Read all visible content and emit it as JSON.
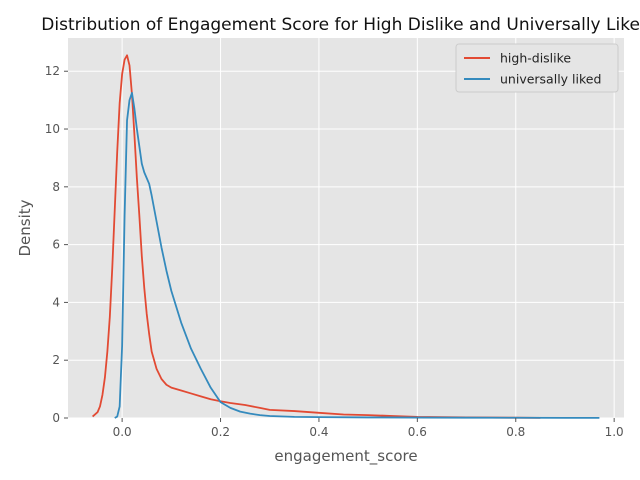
{
  "chart_data": {
    "type": "line",
    "title": "Distribution of Engagement Score for High Dislike and Universally Liked",
    "xlabel": "engagement_score",
    "ylabel": "Density",
    "xlim": [
      -0.11,
      1.02
    ],
    "ylim": [
      0,
      13.15
    ],
    "xticks": [
      0.0,
      0.2,
      0.4,
      0.6,
      0.8,
      1.0
    ],
    "xtick_labels": [
      "0.0",
      "0.2",
      "0.4",
      "0.6",
      "0.8",
      "1.0"
    ],
    "yticks": [
      0,
      2,
      4,
      6,
      8,
      10,
      12
    ],
    "ytick_labels": [
      "0",
      "2",
      "4",
      "6",
      "8",
      "10",
      "12"
    ],
    "grid": true,
    "legend_position": "top-right",
    "series": [
      {
        "name": "high-dislike",
        "color": "#E24A33",
        "x": [
          -0.06,
          -0.05,
          -0.045,
          -0.04,
          -0.035,
          -0.03,
          -0.025,
          -0.02,
          -0.015,
          -0.01,
          -0.005,
          0.0,
          0.005,
          0.01,
          0.015,
          0.02,
          0.025,
          0.03,
          0.035,
          0.04,
          0.045,
          0.05,
          0.055,
          0.06,
          0.07,
          0.08,
          0.09,
          0.1,
          0.12,
          0.14,
          0.16,
          0.18,
          0.2,
          0.22,
          0.25,
          0.28,
          0.3,
          0.35,
          0.4,
          0.45,
          0.5,
          0.55,
          0.6,
          0.65,
          0.7,
          0.75,
          0.8,
          0.85
        ],
        "y": [
          0.05,
          0.2,
          0.4,
          0.8,
          1.4,
          2.3,
          3.5,
          5.2,
          7.2,
          9.2,
          10.9,
          11.9,
          12.4,
          12.55,
          12.2,
          11.2,
          9.8,
          8.3,
          7.0,
          5.6,
          4.5,
          3.6,
          2.9,
          2.3,
          1.7,
          1.35,
          1.15,
          1.05,
          0.95,
          0.85,
          0.75,
          0.65,
          0.58,
          0.52,
          0.45,
          0.35,
          0.28,
          0.24,
          0.18,
          0.12,
          0.1,
          0.07,
          0.04,
          0.03,
          0.02,
          0.015,
          0.01,
          0.005
        ]
      },
      {
        "name": "universally liked",
        "color": "#348ABD",
        "x": [
          -0.015,
          -0.01,
          -0.005,
          0.0,
          0.005,
          0.01,
          0.015,
          0.02,
          0.025,
          0.03,
          0.035,
          0.04,
          0.045,
          0.05,
          0.055,
          0.06,
          0.07,
          0.08,
          0.09,
          0.1,
          0.12,
          0.14,
          0.16,
          0.18,
          0.2,
          0.22,
          0.24,
          0.26,
          0.28,
          0.3,
          0.35,
          0.4,
          0.5,
          0.6,
          0.7,
          0.8,
          0.9,
          0.97
        ],
        "y": [
          0.0,
          0.05,
          0.4,
          2.5,
          7.0,
          10.3,
          11.0,
          11.25,
          10.7,
          10.0,
          9.4,
          8.8,
          8.5,
          8.3,
          8.1,
          7.7,
          6.8,
          5.9,
          5.1,
          4.4,
          3.3,
          2.4,
          1.7,
          1.05,
          0.55,
          0.35,
          0.22,
          0.15,
          0.1,
          0.07,
          0.04,
          0.03,
          0.02,
          0.015,
          0.01,
          0.008,
          0.005,
          0.003
        ]
      }
    ]
  }
}
